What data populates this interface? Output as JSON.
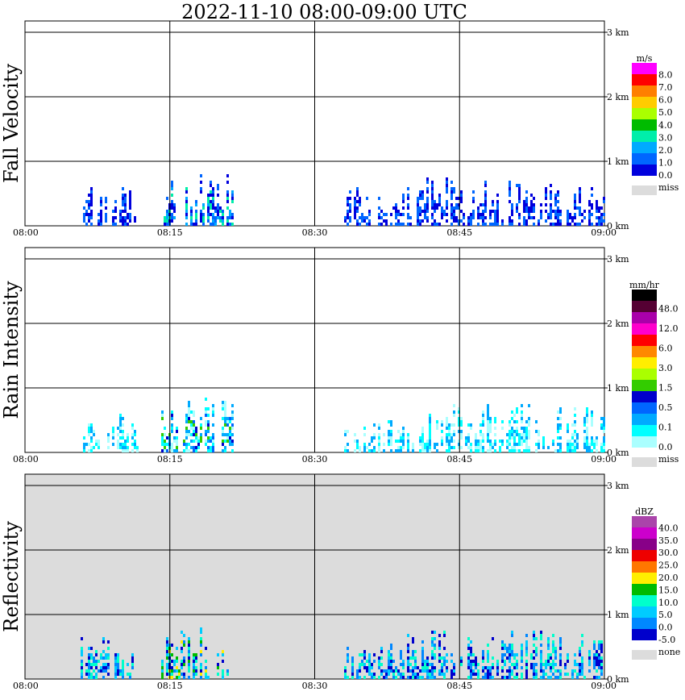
{
  "title": "2022-11-10   08:00-09:00 UTC",
  "chart_data": [
    {
      "type": "heatmap",
      "ylabel": "Fall Velocity",
      "x_ticks": [
        "08:00",
        "08:15",
        "08:30",
        "08:45",
        "09:00"
      ],
      "y_ticks": [
        "0 km",
        "1 km",
        "2 km",
        "3 km"
      ],
      "ylim_km": [
        0,
        3.0
      ],
      "grid": true,
      "background": "#ffffff",
      "legend": {
        "unit": "m/s",
        "labels": [
          "8.0",
          "7.0",
          "6.0",
          "5.0",
          "4.0",
          "3.0",
          "2.0",
          "1.0",
          "0.0"
        ],
        "colors": [
          "#ff00ff",
          "#ff0000",
          "#ff7f00",
          "#ffcc00",
          "#aaff00",
          "#00bb00",
          "#00eeaa",
          "#00aaff",
          "#0066ff",
          "#0000dd"
        ],
        "miss_label": "miss",
        "miss_color": "#dcdcdc"
      }
    },
    {
      "type": "heatmap",
      "ylabel": "Rain Intensity",
      "x_ticks": [
        "08:00",
        "08:15",
        "08:30",
        "08:45",
        "09:00"
      ],
      "y_ticks": [
        "0 km",
        "1 km",
        "2 km",
        "3 km"
      ],
      "ylim_km": [
        0,
        3.0
      ],
      "grid": true,
      "background": "#ffffff",
      "legend": {
        "unit": "mm/hr",
        "labels": [
          "48.0",
          "12.0",
          "6.0",
          "3.0",
          "1.5",
          "0.5",
          "0.1",
          "0.0"
        ],
        "colors": [
          "#000000",
          "#550033",
          "#aa00aa",
          "#ff00cc",
          "#ff0000",
          "#ff8800",
          "#ffee00",
          "#aaff00",
          "#33cc00",
          "#0000cc",
          "#0066ff",
          "#00aaff",
          "#00ffff",
          "#aaffff"
        ],
        "miss_label": "miss",
        "miss_color": "#dcdcdc"
      }
    },
    {
      "type": "heatmap",
      "ylabel": "Reflectivity",
      "x_ticks": [
        "08:00",
        "08:15",
        "08:30",
        "08:45",
        "09:00"
      ],
      "y_ticks": [
        "0 km",
        "1 km",
        "2 km",
        "3 km"
      ],
      "ylim_km": [
        0,
        3.0
      ],
      "grid": true,
      "background": "#dcdcdc",
      "legend": {
        "unit": "dBZ",
        "labels": [
          "40.0",
          "35.0",
          "30.0",
          "25.0",
          "20.0",
          "15.0",
          "10.0",
          "5.0",
          "0.0",
          "-5.0"
        ],
        "colors": [
          "#aa44aa",
          "#cc00cc",
          "#880088",
          "#ee0000",
          "#ff7700",
          "#ffee00",
          "#00bb00",
          "#00ffcc",
          "#00ccff",
          "#0088ff",
          "#0000cc"
        ],
        "miss_label": "none",
        "miss_color": "#dcdcdc"
      }
    }
  ]
}
